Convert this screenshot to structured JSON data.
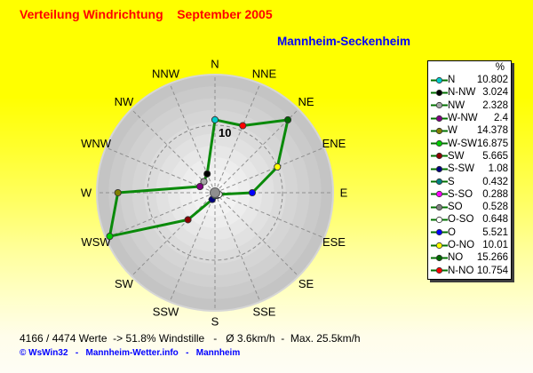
{
  "header": {
    "title": "Verteilung Windrichtung    September 2005",
    "subtitle": "Mannheim-Seckenheim"
  },
  "footer": {
    "stats": "4166 / 4474 Werte  -> 51.8% Windstille   -   Ø 3.6km/h  -  Max. 25.5km/h",
    "credit": "© WsWin32   -   Mannheim-Wetter.info   -   Mannheim"
  },
  "chart_data": {
    "type": "radar",
    "title": "Verteilung Windrichtung September 2005",
    "station": "Mannheim-Seckenheim",
    "unit": "%",
    "axis_labels": [
      "N",
      "NNE",
      "NE",
      "ENE",
      "E",
      "ESE",
      "SE",
      "SSE",
      "S",
      "SSW",
      "SW",
      "WSW",
      "W",
      "WNW",
      "NW",
      "NNW"
    ],
    "ring": {
      "value": 10,
      "label": "10"
    },
    "max_value": 17.5,
    "line_color": "#0a8a0a",
    "legend_header": "%",
    "legend_line_color": "#007000",
    "rows": [
      {
        "label": "N",
        "angle": 0,
        "value": 10.802,
        "display": "10.802",
        "color": "#00cccc"
      },
      {
        "label": "N-NW",
        "angle": 337.5,
        "value": 3.024,
        "display": "3.024",
        "color": "#000000"
      },
      {
        "label": "NW",
        "angle": 315,
        "value": 2.328,
        "display": "2.328",
        "color": "#a6a6a6"
      },
      {
        "label": "W-NW",
        "angle": 292.5,
        "value": 2.4,
        "display": "2.4",
        "color": "#800080"
      },
      {
        "label": "W",
        "angle": 270,
        "value": 14.378,
        "display": "14.378",
        "color": "#808000"
      },
      {
        "label": "W-SW",
        "angle": 247.5,
        "value": 16.875,
        "display": "16.875",
        "color": "#00cc00"
      },
      {
        "label": "SW",
        "angle": 225,
        "value": 5.665,
        "display": "5.665",
        "color": "#8b0000"
      },
      {
        "label": "S-SW",
        "angle": 202.5,
        "value": 1.08,
        "display": "1.08",
        "color": "#000080"
      },
      {
        "label": "S",
        "angle": 180,
        "value": 0.432,
        "display": "0.432",
        "color": "#008080"
      },
      {
        "label": "S-SO",
        "angle": 157.5,
        "value": 0.288,
        "display": "0.288",
        "color": "#ff00ff"
      },
      {
        "label": "SO",
        "angle": 135,
        "value": 0.528,
        "display": "0.528",
        "color": "#808080"
      },
      {
        "label": "O-SO",
        "angle": 112.5,
        "value": 0.648,
        "display": "0.648",
        "color": "#ffffff"
      },
      {
        "label": "O",
        "angle": 90,
        "value": 5.521,
        "display": "5.521",
        "color": "#0000ff"
      },
      {
        "label": "O-NO",
        "angle": 67.5,
        "value": 10.01,
        "display": "10.01",
        "color": "#ffff00"
      },
      {
        "label": "NO",
        "angle": 45,
        "value": 15.266,
        "display": "15.266",
        "color": "#006600"
      },
      {
        "label": "N-NO",
        "angle": 22.5,
        "value": 10.754,
        "display": "10.754",
        "color": "#ff0000"
      }
    ]
  }
}
